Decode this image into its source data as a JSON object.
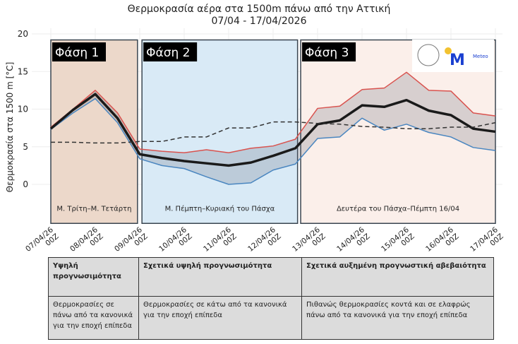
{
  "chart_data": {
    "type": "line",
    "title": "Θερμοκρασία αέρα στα 1500m πάνω από την Αττική",
    "subtitle": "07/04 - 17/04/2026",
    "ylabel": "Θερμοκρασία στα 1500 m [°C]",
    "xlabel": "",
    "ylim": [
      -5,
      20
    ],
    "yticks": [
      0,
      5,
      10,
      15,
      20
    ],
    "grid": true,
    "xtick_labels": [
      "07/04/26 00Z",
      "08/04/26 00Z",
      "09/04/26 00Z",
      "10/04/26 00Z",
      "11/04/26 00Z",
      "12/04/26 00Z",
      "13/04/26 00Z",
      "14/04/26 00Z",
      "15/04/26 00Z",
      "16/04/26 00Z",
      "17/04/26 00Z"
    ],
    "x_step_hours": 12,
    "series": [
      {
        "role": "max",
        "color": "#d9534f",
        "values": [
          7.6,
          10.0,
          12.5,
          9.5,
          4.7,
          4.4,
          4.2,
          4.6,
          4.2,
          4.8,
          5.1,
          6.0,
          10.1,
          10.4,
          12.6,
          12.8,
          14.9,
          12.5,
          12.4,
          9.5,
          9.1
        ]
      },
      {
        "role": "min",
        "color": "#4a86c0",
        "values": [
          7.3,
          9.5,
          11.4,
          8.2,
          3.4,
          2.5,
          2.1,
          1.0,
          0.0,
          0.2,
          1.9,
          2.7,
          6.1,
          6.3,
          8.8,
          7.2,
          8.0,
          6.9,
          6.3,
          4.9,
          4.5
        ]
      },
      {
        "role": "mean",
        "color": "#1a1a1a",
        "values": [
          7.4,
          9.9,
          12.0,
          8.8,
          4.0,
          3.5,
          3.1,
          2.8,
          2.5,
          2.9,
          3.8,
          4.8,
          8.0,
          8.5,
          10.5,
          10.3,
          11.2,
          9.8,
          9.2,
          7.4,
          7.0
        ]
      },
      {
        "role": "climatology",
        "color": "#333333",
        "dashed": true,
        "values": [
          5.6,
          5.6,
          5.5,
          5.5,
          5.7,
          5.7,
          6.3,
          6.3,
          7.5,
          7.5,
          8.3,
          8.3,
          8.1,
          8.0,
          7.7,
          7.6,
          7.4,
          7.4,
          7.6,
          7.6,
          8.2
        ]
      }
    ],
    "phases": [
      {
        "label": "Φάση 1",
        "period": "Μ. Τρίτη–Μ. Τετάρτη",
        "from_day": 0,
        "to_day": 1.95,
        "color": "#ecd8ca"
      },
      {
        "label": "Φάση 2",
        "period": "Μ. Πέμπτη–Κυριακή του Πάσχα",
        "from_day": 2.05,
        "to_day": 5.55,
        "color": "#d9eaf6"
      },
      {
        "label": "Φάση 3",
        "period": "Δευτέρα του Πάσχα–Πέμπτη 16/04",
        "from_day": 5.62,
        "to_day": 10,
        "color": "#fbefea"
      }
    ],
    "logo": "Meteo"
  },
  "table": {
    "headers": [
      "Υψηλή προγνωσιμότητα",
      "Σχετικά υψηλή προγνωσιμότητα",
      "Σχετικά αυξημένη προγνωστική αβεβαιότητα"
    ],
    "body": [
      "Θερμοκρασίες σε πάνω από τα κανονικά για την εποχή επίπεδα",
      "Θερμοκρασίες σε κάτω από τα κανονικά για την εποχή επίπεδα",
      "Πιθανώς θερμοκρασίες κοντά και σε ελαφρώς πάνω από τα κανονικά για την εποχή επίπεδα"
    ]
  }
}
